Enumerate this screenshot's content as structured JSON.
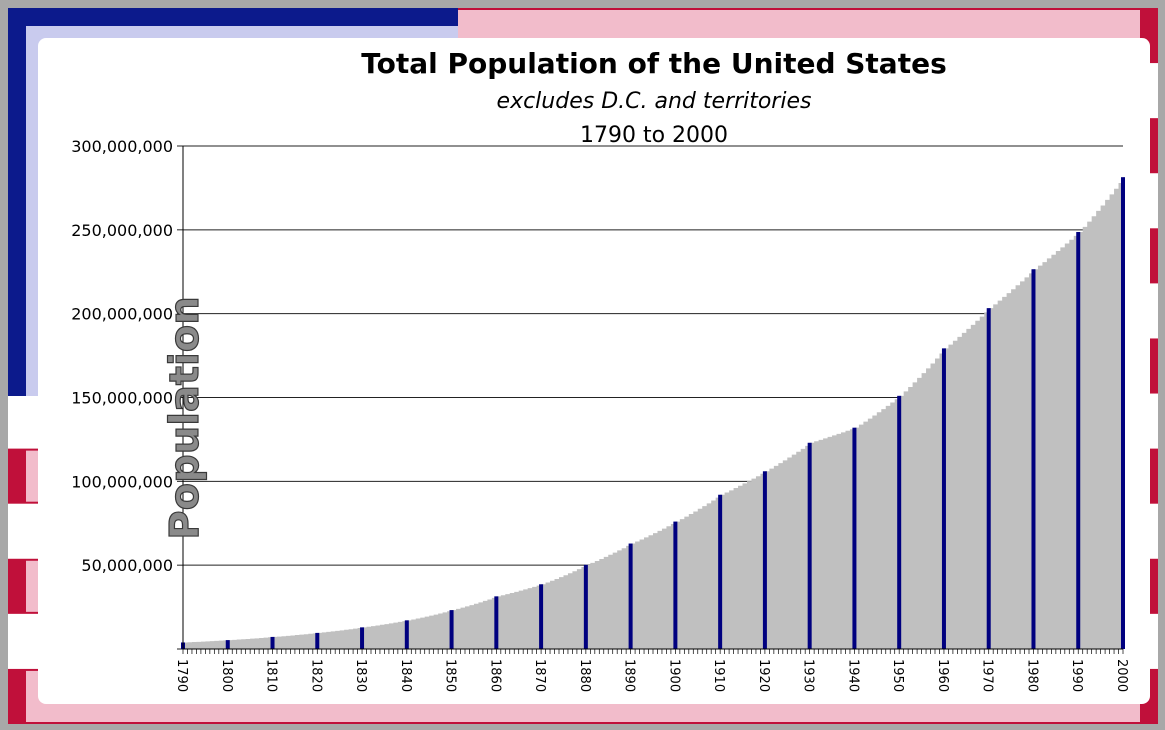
{
  "colors": {
    "flag_blue": "#0c1a8c",
    "flag_red": "#c0103a",
    "flag_pink": "#f2bccb",
    "canton_light": "#c9cbee",
    "fill_gray": "#c0c0c0",
    "census_bar": "#00007f",
    "gridline": "#222222"
  },
  "chart_data": {
    "type": "area",
    "title": "Total Population of the United States",
    "subtitle": "excludes D.C. and territories",
    "range_label": "1790 to 2000",
    "ylabel": "Population",
    "xlabel": "",
    "ylim": [
      0,
      300000000
    ],
    "xlim": [
      1790,
      2000
    ],
    "grid": true,
    "y_tick_values": [
      0,
      50000000,
      100000000,
      150000000,
      200000000,
      250000000,
      300000000
    ],
    "y_tick_labels": [
      "",
      "50,000,000",
      "100,000,000",
      "150,000,000",
      "200,000,000",
      "250,000,000",
      "300,000,000"
    ],
    "x_tick_labels": [
      "1790",
      "1800",
      "1810",
      "1820",
      "1830",
      "1840",
      "1850",
      "1860",
      "1870",
      "1880",
      "1890",
      "1900",
      "1910",
      "1920",
      "1930",
      "1940",
      "1950",
      "1960",
      "1970",
      "1980",
      "1990",
      "2000"
    ],
    "series": [
      {
        "type": "area",
        "description_role": "annual estimates (gray fill)",
        "x": [
          1790,
          1800,
          1810,
          1820,
          1830,
          1840,
          1850,
          1860,
          1870,
          1880,
          1890,
          1900,
          1910,
          1920,
          1930,
          1940,
          1950,
          1960,
          1970,
          1980,
          1990,
          2000
        ],
        "values": [
          3900000,
          5300000,
          7200000,
          9600000,
          12900000,
          17100000,
          23200000,
          31400000,
          38600000,
          50200000,
          62900000,
          76000000,
          92000000,
          106000000,
          123000000,
          132000000,
          151000000,
          179300000,
          203300000,
          226500000,
          248700000,
          281400000
        ]
      },
      {
        "type": "bar",
        "description_role": "decennial census markers",
        "x": [
          1790,
          1800,
          1810,
          1820,
          1830,
          1840,
          1850,
          1860,
          1870,
          1880,
          1890,
          1900,
          1910,
          1920,
          1930,
          1940,
          1950,
          1960,
          1970,
          1980,
          1990,
          2000
        ],
        "values": [
          3900000,
          5300000,
          7200000,
          9600000,
          12900000,
          17100000,
          23200000,
          31400000,
          38600000,
          50200000,
          62900000,
          76000000,
          92000000,
          106000000,
          123000000,
          132000000,
          151000000,
          179300000,
          203300000,
          226500000,
          248700000,
          281400000
        ]
      }
    ]
  }
}
